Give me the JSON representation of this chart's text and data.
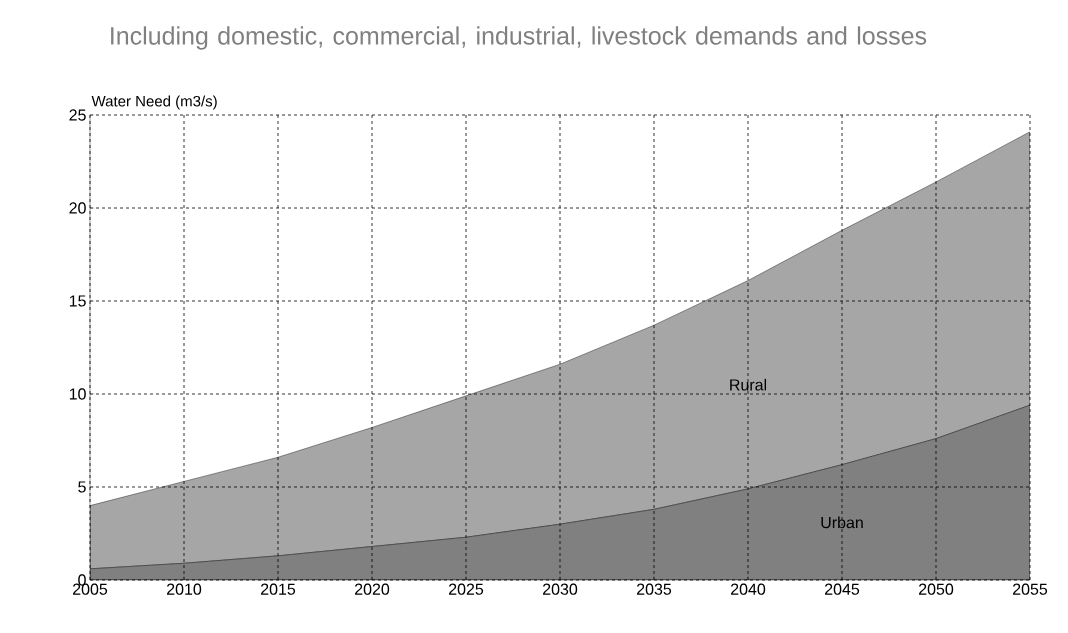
{
  "chart_data": {
    "type": "area",
    "title": "Including domestic, commercial, industrial, livestock demands and losses",
    "ylabel": "Water Need (m3/s)",
    "x": [
      2005,
      2010,
      2015,
      2020,
      2025,
      2030,
      2035,
      2040,
      2045,
      2050,
      2055
    ],
    "stacked": true,
    "series": [
      {
        "name": "Urban",
        "color": "#808080",
        "values": [
          0.6,
          0.9,
          1.3,
          1.8,
          2.3,
          3.0,
          3.8,
          4.9,
          6.2,
          7.6,
          9.4
        ]
      },
      {
        "name": "Rural",
        "color": "#a6a6a6",
        "values": [
          3.4,
          4.4,
          5.3,
          6.4,
          7.6,
          8.6,
          9.9,
          11.2,
          12.6,
          13.8,
          14.7
        ]
      }
    ],
    "xlim": [
      2005,
      2055
    ],
    "xticks": [
      2005,
      2010,
      2015,
      2020,
      2025,
      2030,
      2035,
      2040,
      2045,
      2050,
      2055
    ],
    "ylim": [
      0,
      25
    ],
    "yticks": [
      0,
      5,
      10,
      15,
      20,
      25
    ],
    "grid": true
  }
}
